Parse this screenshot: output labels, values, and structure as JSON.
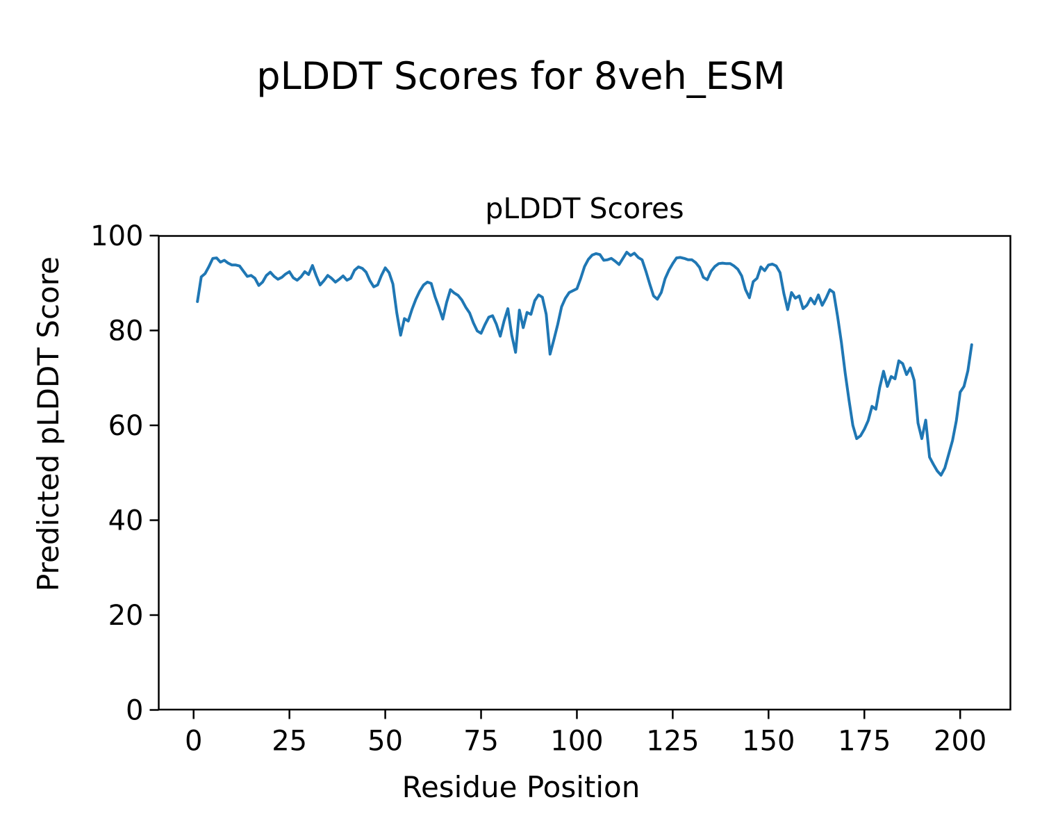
{
  "figure": {
    "suptitle": "pLDDT Scores for 8veh_ESM",
    "background_color": "#ffffff",
    "text_color": "#000000"
  },
  "chart_data": {
    "type": "line",
    "title": "pLDDT Scores",
    "xlabel": "Residue Position",
    "ylabel": "Predicted pLDDT Score",
    "series_name": "pLDDT",
    "line_color": "#1f77b4",
    "line_width": 4,
    "grid": false,
    "legend": false,
    "x_start": 1,
    "x_step": 1,
    "n_points": 203,
    "xlim": [
      -9.1,
      213.1
    ],
    "ylim": [
      0,
      100
    ],
    "x_ticks": [
      0,
      25,
      50,
      75,
      100,
      125,
      150,
      175,
      200
    ],
    "y_ticks": [
      0,
      20,
      40,
      60,
      80,
      100
    ],
    "values": [
      86.1,
      91.3,
      92.0,
      93.5,
      95.2,
      95.3,
      94.4,
      94.8,
      94.2,
      93.8,
      93.8,
      93.6,
      92.5,
      91.4,
      91.6,
      91.0,
      89.5,
      90.2,
      91.6,
      92.3,
      91.4,
      90.8,
      91.2,
      91.9,
      92.4,
      91.1,
      90.6,
      91.3,
      92.4,
      91.8,
      93.7,
      91.5,
      89.6,
      90.5,
      91.6,
      91.0,
      90.2,
      90.8,
      91.5,
      90.6,
      91.0,
      92.7,
      93.4,
      93.1,
      92.3,
      90.5,
      89.2,
      89.6,
      91.6,
      93.2,
      92.2,
      89.8,
      83.8,
      79.0,
      82.5,
      82.0,
      84.5,
      86.6,
      88.3,
      89.6,
      90.2,
      89.9,
      87.1,
      84.9,
      82.4,
      85.9,
      88.6,
      87.9,
      87.4,
      86.4,
      84.9,
      83.7,
      81.6,
      79.9,
      79.4,
      81.2,
      82.8,
      83.1,
      81.3,
      78.8,
      82.0,
      84.6,
      79.0,
      75.4,
      84.3,
      80.6,
      83.8,
      83.4,
      86.3,
      87.5,
      87.0,
      83.4,
      75.0,
      78.1,
      81.3,
      85.0,
      86.8,
      88.0,
      88.4,
      88.8,
      91.0,
      93.5,
      95.0,
      95.9,
      96.2,
      96.0,
      94.8,
      94.9,
      95.2,
      94.6,
      93.9,
      95.2,
      96.5,
      95.8,
      96.3,
      95.4,
      94.9,
      92.5,
      89.8,
      87.3,
      86.6,
      88.0,
      90.9,
      92.7,
      94.1,
      95.3,
      95.4,
      95.2,
      94.9,
      94.9,
      94.3,
      93.3,
      91.2,
      90.7,
      92.5,
      93.5,
      94.1,
      94.2,
      94.1,
      94.1,
      93.6,
      92.9,
      91.5,
      88.6,
      86.9,
      90.3,
      91.0,
      93.4,
      92.6,
      93.8,
      94.0,
      93.6,
      92.2,
      87.8,
      84.4,
      88.0,
      86.8,
      87.3,
      84.6,
      85.3,
      86.8,
      85.6,
      87.5,
      85.3,
      86.8,
      88.6,
      88.0,
      83.0,
      77.5,
      71.0,
      65.3,
      60.0,
      57.2,
      57.8,
      59.2,
      61.0,
      64.0,
      63.4,
      68.0,
      71.4,
      68.2,
      70.3,
      69.8,
      73.6,
      73.0,
      70.7,
      72.1,
      69.5,
      60.5,
      57.2,
      61.1,
      53.3,
      51.8,
      50.4,
      49.5,
      51.0,
      53.9,
      56.8,
      61.0,
      67.0,
      68.2,
      71.5,
      77.0
    ]
  }
}
